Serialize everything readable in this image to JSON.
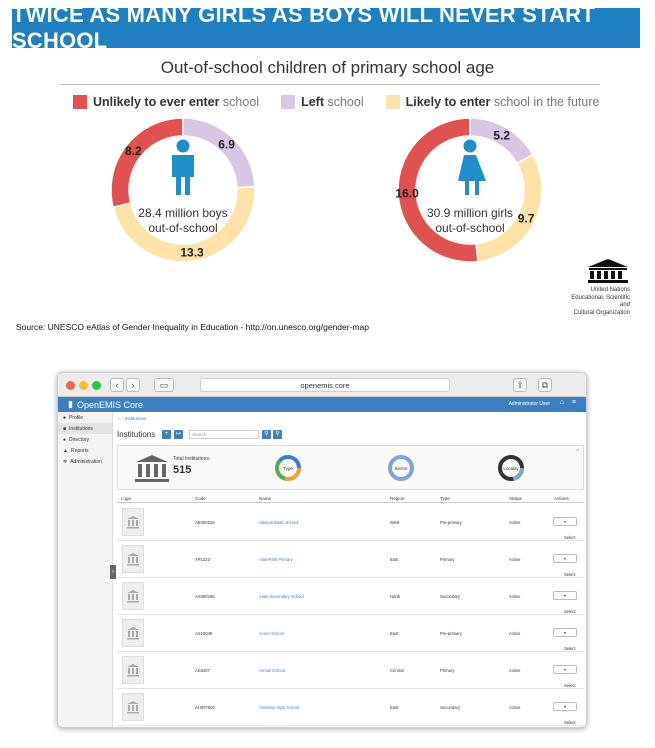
{
  "banner": "TWICE AS MANY GIRLS AS BOYS WILL NEVER START SCHOOL",
  "subtitle": "Out-of-school children of primary school age",
  "legend": [
    {
      "bold": "Unlikely to ever enter",
      "light": " school",
      "color": "#e0524f"
    },
    {
      "bold": "Left",
      "light": " school",
      "color": "#d9c6e4"
    },
    {
      "bold": "Likely to enter",
      "light": " school in the future",
      "color": "#fde3a7"
    }
  ],
  "chart_data": [
    {
      "type": "pie",
      "categories": [
        "Unlikely to ever enter school",
        "Left school",
        "Likely to enter school in the future"
      ],
      "values": [
        8.2,
        6.9,
        13.3
      ],
      "center_line1": "28.4 million boys",
      "center_line2": "out-of-school",
      "colors": [
        "#e0524f",
        "#d9c6e4",
        "#fde3a7"
      ]
    },
    {
      "type": "pie",
      "categories": [
        "Unlikely to ever enter school",
        "Left school",
        "Likely to enter school in the future"
      ],
      "values": [
        16.0,
        5.2,
        9.7
      ],
      "center_line1": "30.9 million girls",
      "center_line2": "out-of-school",
      "colors": [
        "#e0524f",
        "#d9c6e4",
        "#fde3a7"
      ]
    }
  ],
  "unesco": {
    "mark": "UNESCO",
    "line1": "United Nations",
    "line2": "Educational, Scientific and",
    "line3": "Cultural Organization"
  },
  "source": "Source: UNESCO eAtlas of Gender Inequality in Education - http://on.unesco.org/gender-map",
  "browser": {
    "url": "openemis.core",
    "app_name": "OpenEMIS Core",
    "user": "Administrator User",
    "sidebar": [
      {
        "label": "Profile",
        "icon": "person-icon"
      },
      {
        "label": "Institutions",
        "icon": "building-icon"
      },
      {
        "label": "Directory",
        "icon": "people-icon"
      },
      {
        "label": "Reports",
        "icon": "chart-icon"
      },
      {
        "label": "Administration",
        "icon": "gear-icon"
      }
    ],
    "breadcrumb": "Institutions",
    "page_title": "Institutions",
    "search_placeholder": "Search",
    "total_label": "Total Institutions:",
    "total_value": "515",
    "stat_charts": [
      "Type",
      "Sector",
      "Locality"
    ],
    "columns": [
      "Logo",
      "Code",
      "Name",
      "Region",
      "Type",
      "Status",
      "Actions"
    ],
    "rows": [
      {
        "code": "AB000226",
        "name": "Abacus Basic School",
        "region": "West",
        "type": "Pre-primary",
        "status": "Active",
        "action": "Select"
      },
      {
        "code": "AP1223",
        "name": "AlamPath Primary",
        "region": "East",
        "type": "Primary",
        "status": "Active",
        "action": "Select"
      },
      {
        "code": "AS000268",
        "name": "Alato Secondary School",
        "region": "North",
        "type": "Secondary",
        "status": "Active",
        "action": "Select"
      },
      {
        "code": "AS10049",
        "name": "Acore School",
        "region": "East",
        "type": "Pre-primary",
        "status": "Active",
        "action": "Select"
      },
      {
        "code": "AS6457",
        "name": "Armali School",
        "region": "Central",
        "type": "Primary",
        "status": "Active",
        "action": "Select"
      },
      {
        "code": "AH007800",
        "name": "Andrews High School",
        "region": "East",
        "type": "Secondary",
        "status": "Active",
        "action": "Select"
      }
    ]
  }
}
